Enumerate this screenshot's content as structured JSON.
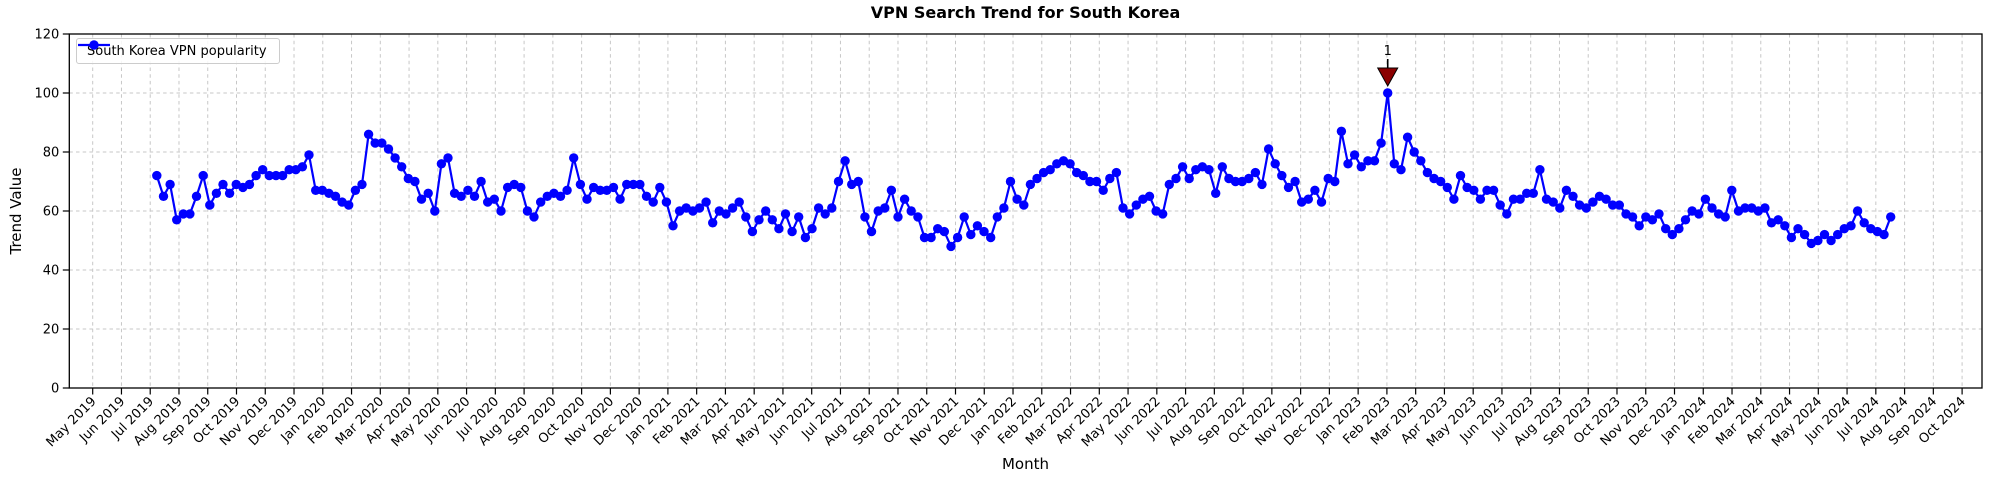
{
  "title": "VPN Search Trend for South Korea",
  "axes": {
    "x_label": "Month",
    "y_label": "Trend Value"
  },
  "legend": {
    "label": "South Korea VPN popularity"
  },
  "annotation": {
    "label": "1",
    "point_index": 186,
    "value": 100,
    "color": "#8b0000"
  },
  "colors": {
    "line": "#0000ff",
    "marker": "#0000ff",
    "grid": "#c7c7c7",
    "spine": "#000000",
    "annotation": "#8b0000",
    "background": "#ffffff",
    "legend_border": "#cccccc"
  },
  "chart_data": {
    "type": "line",
    "title": "VPN Search Trend for South Korea",
    "xlabel": "Month",
    "ylabel": "Trend Value",
    "ylim": [
      0,
      120
    ],
    "y_ticks": [
      0,
      20,
      40,
      60,
      80,
      100,
      120
    ],
    "grid": true,
    "grid_style": "dashed",
    "legend_position": "upper left",
    "x_tick_labels": [
      "May 2019",
      "Jun 2019",
      "Jul 2019",
      "Aug 2019",
      "Sep 2019",
      "Oct 2019",
      "Nov 2019",
      "Dec 2019",
      "Jan 2020",
      "Feb 2020",
      "Mar 2020",
      "Apr 2020",
      "May 2020",
      "Jun 2020",
      "Jul 2020",
      "Aug 2020",
      "Sep 2020",
      "Oct 2020",
      "Nov 2020",
      "Dec 2020",
      "Jan 2021",
      "Feb 2021",
      "Mar 2021",
      "Apr 2021",
      "May 2021",
      "Jun 2021",
      "Jul 2021",
      "Aug 2021",
      "Sep 2021",
      "Oct 2021",
      "Nov 2021",
      "Dec 2021",
      "Jan 2022",
      "Feb 2022",
      "Mar 2022",
      "Apr 2022",
      "May 2022",
      "Jun 2022",
      "Jul 2022",
      "Aug 2022",
      "Sep 2022",
      "Oct 2022",
      "Nov 2022",
      "Dec 2022",
      "Jan 2023",
      "Feb 2023",
      "Mar 2023",
      "Apr 2023",
      "May 2023",
      "Jun 2023",
      "Jul 2023",
      "Aug 2023",
      "Sep 2023",
      "Oct 2023",
      "Nov 2023",
      "Dec 2023",
      "Jan 2024",
      "Feb 2024",
      "Mar 2024",
      "Apr 2024",
      "May 2024",
      "Jun 2024",
      "Jul 2024",
      "Aug 2024",
      "Sep 2024",
      "Oct 2024"
    ],
    "x_start_month_offset": 2.23,
    "x_step_months": 0.2301,
    "series": [
      {
        "name": "South Korea VPN popularity",
        "values": [
          72,
          65,
          69,
          57,
          59,
          59,
          65,
          72,
          62,
          66,
          69,
          66,
          69,
          68,
          69,
          72,
          74,
          72,
          72,
          72,
          74,
          74,
          75,
          79,
          67,
          67,
          66,
          65,
          63,
          62,
          67,
          69,
          86,
          83,
          83,
          81,
          78,
          75,
          71,
          70,
          64,
          66,
          60,
          76,
          78,
          66,
          65,
          67,
          65,
          70,
          63,
          64,
          60,
          68,
          69,
          68,
          60,
          58,
          63,
          65,
          66,
          65,
          67,
          78,
          69,
          64,
          68,
          67,
          67,
          68,
          64,
          69,
          69,
          69,
          65,
          63,
          68,
          63,
          55,
          60,
          61,
          60,
          61,
          63,
          56,
          60,
          59,
          61,
          63,
          58,
          53,
          57,
          60,
          57,
          54,
          59,
          53,
          58,
          51,
          54,
          61,
          59,
          61,
          70,
          77,
          69,
          70,
          58,
          53,
          60,
          61,
          67,
          58,
          64,
          60,
          58,
          51,
          51,
          54,
          53,
          48,
          51,
          58,
          52,
          55,
          53,
          51,
          58,
          61,
          70,
          64,
          62,
          69,
          71,
          73,
          74,
          76,
          77,
          76,
          73,
          72,
          70,
          70,
          67,
          71,
          73,
          61,
          59,
          62,
          64,
          65,
          60,
          59,
          69,
          71,
          75,
          71,
          74,
          75,
          74,
          66,
          75,
          71,
          70,
          70,
          71,
          73,
          69,
          81,
          76,
          72,
          68,
          70,
          63,
          64,
          67,
          63,
          71,
          70,
          87,
          76,
          79,
          75,
          77,
          77,
          83,
          100,
          76,
          74,
          85,
          80,
          77,
          73,
          71,
          70,
          68,
          64,
          72,
          68,
          67,
          64,
          67,
          67,
          62,
          59,
          64,
          64,
          66,
          66,
          74,
          64,
          63,
          61,
          67,
          65,
          62,
          61,
          63,
          65,
          64,
          62,
          62,
          59,
          58,
          55,
          58,
          57,
          59,
          54,
          52,
          54,
          57,
          60,
          59,
          64,
          61,
          59,
          58,
          67,
          60,
          61,
          61,
          60,
          61,
          56,
          57,
          55,
          51,
          54,
          52,
          49,
          50,
          52,
          50,
          52,
          54,
          55,
          60,
          56,
          54,
          53,
          52,
          58
        ]
      }
    ]
  }
}
